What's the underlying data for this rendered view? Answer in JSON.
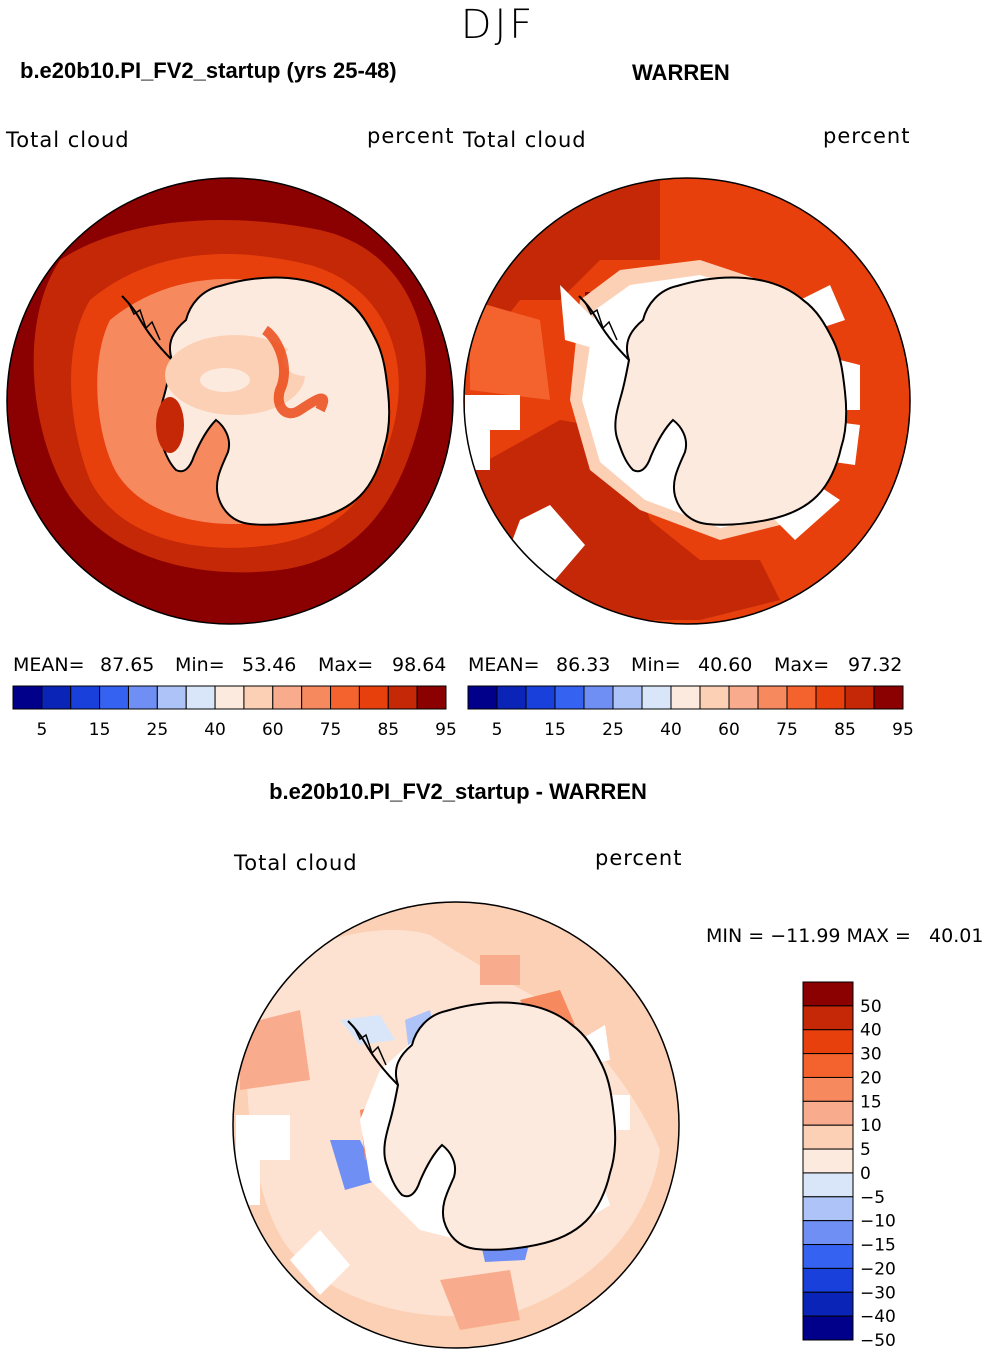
{
  "season": "DJF",
  "panel_a": {
    "title": "b.e20b10.PI_FV2_startup (yrs 25-48)",
    "left_label": "Total cloud",
    "right_label": "percent",
    "mean_label": "MEAN=",
    "mean": "87.65",
    "min_label": "Min=",
    "min": "53.46",
    "max_label": "Max=",
    "max": "98.64"
  },
  "panel_b": {
    "title": "WARREN",
    "left_label": "Total cloud",
    "right_label": "percent",
    "mean_label": "MEAN=",
    "mean": "86.33",
    "min_label": "Min=",
    "min": "40.60",
    "max_label": "Max=",
    "max": "97.32"
  },
  "diff_panel": {
    "title": "b.e20b10.PI_FV2_startup - WARREN",
    "left_label": "Total cloud",
    "right_label": "percent",
    "minmax_text": "MIN = −11.99 MAX =   40.01"
  },
  "colorbar_top": {
    "colors": [
      "#00008b",
      "#0b24b8",
      "#1a40db",
      "#3562f0",
      "#6f8ff4",
      "#aec3f7",
      "#d9e6f9",
      "#fdeade",
      "#fcd0b5",
      "#f9ac8d",
      "#f7895f",
      "#f4622e",
      "#e8400c",
      "#c42807",
      "#8b0000"
    ],
    "tick_labels": [
      "5",
      "15",
      "25",
      "40",
      "60",
      "75",
      "85",
      "95"
    ]
  },
  "colorbar_diff": {
    "colors": [
      "#8b0000",
      "#c42807",
      "#e8400c",
      "#f4622e",
      "#f7895f",
      "#f9ac8d",
      "#fcd0b5",
      "#fdeade",
      "#d9e6f9",
      "#aec3f7",
      "#6f8ff4",
      "#3562f0",
      "#1a40db",
      "#0b24b8",
      "#00008b"
    ],
    "tick_labels": [
      "50",
      "40",
      "30",
      "20",
      "15",
      "10",
      "5",
      "0",
      "−5",
      "−10",
      "−15",
      "−20",
      "−30",
      "−40",
      "−50"
    ]
  },
  "chart_data": [
    {
      "type": "heatmap",
      "title": "b.e20b10.PI_FV2_startup (yrs 25-48)",
      "field": "Total cloud",
      "units": "percent",
      "projection": "south polar stereographic",
      "stats": {
        "mean": 87.65,
        "min": 53.46,
        "max": 98.64
      },
      "contour_levels": [
        5,
        10,
        15,
        20,
        25,
        30,
        40,
        50,
        60,
        70,
        75,
        80,
        85,
        90,
        95
      ]
    },
    {
      "type": "heatmap",
      "title": "WARREN",
      "field": "Total cloud",
      "units": "percent",
      "projection": "south polar stereographic",
      "stats": {
        "mean": 86.33,
        "min": 40.6,
        "max": 97.32
      },
      "contour_levels": [
        5,
        10,
        15,
        20,
        25,
        30,
        40,
        50,
        60,
        70,
        75,
        80,
        85,
        90,
        95
      ]
    },
    {
      "type": "heatmap",
      "title": "b.e20b10.PI_FV2_startup - WARREN",
      "field": "Total cloud",
      "units": "percent",
      "projection": "south polar stereographic",
      "stats": {
        "min": -11.99,
        "max": 40.01
      },
      "contour_levels": [
        -50,
        -40,
        -30,
        -20,
        -15,
        -10,
        -5,
        0,
        5,
        10,
        15,
        20,
        30,
        40,
        50
      ]
    }
  ]
}
